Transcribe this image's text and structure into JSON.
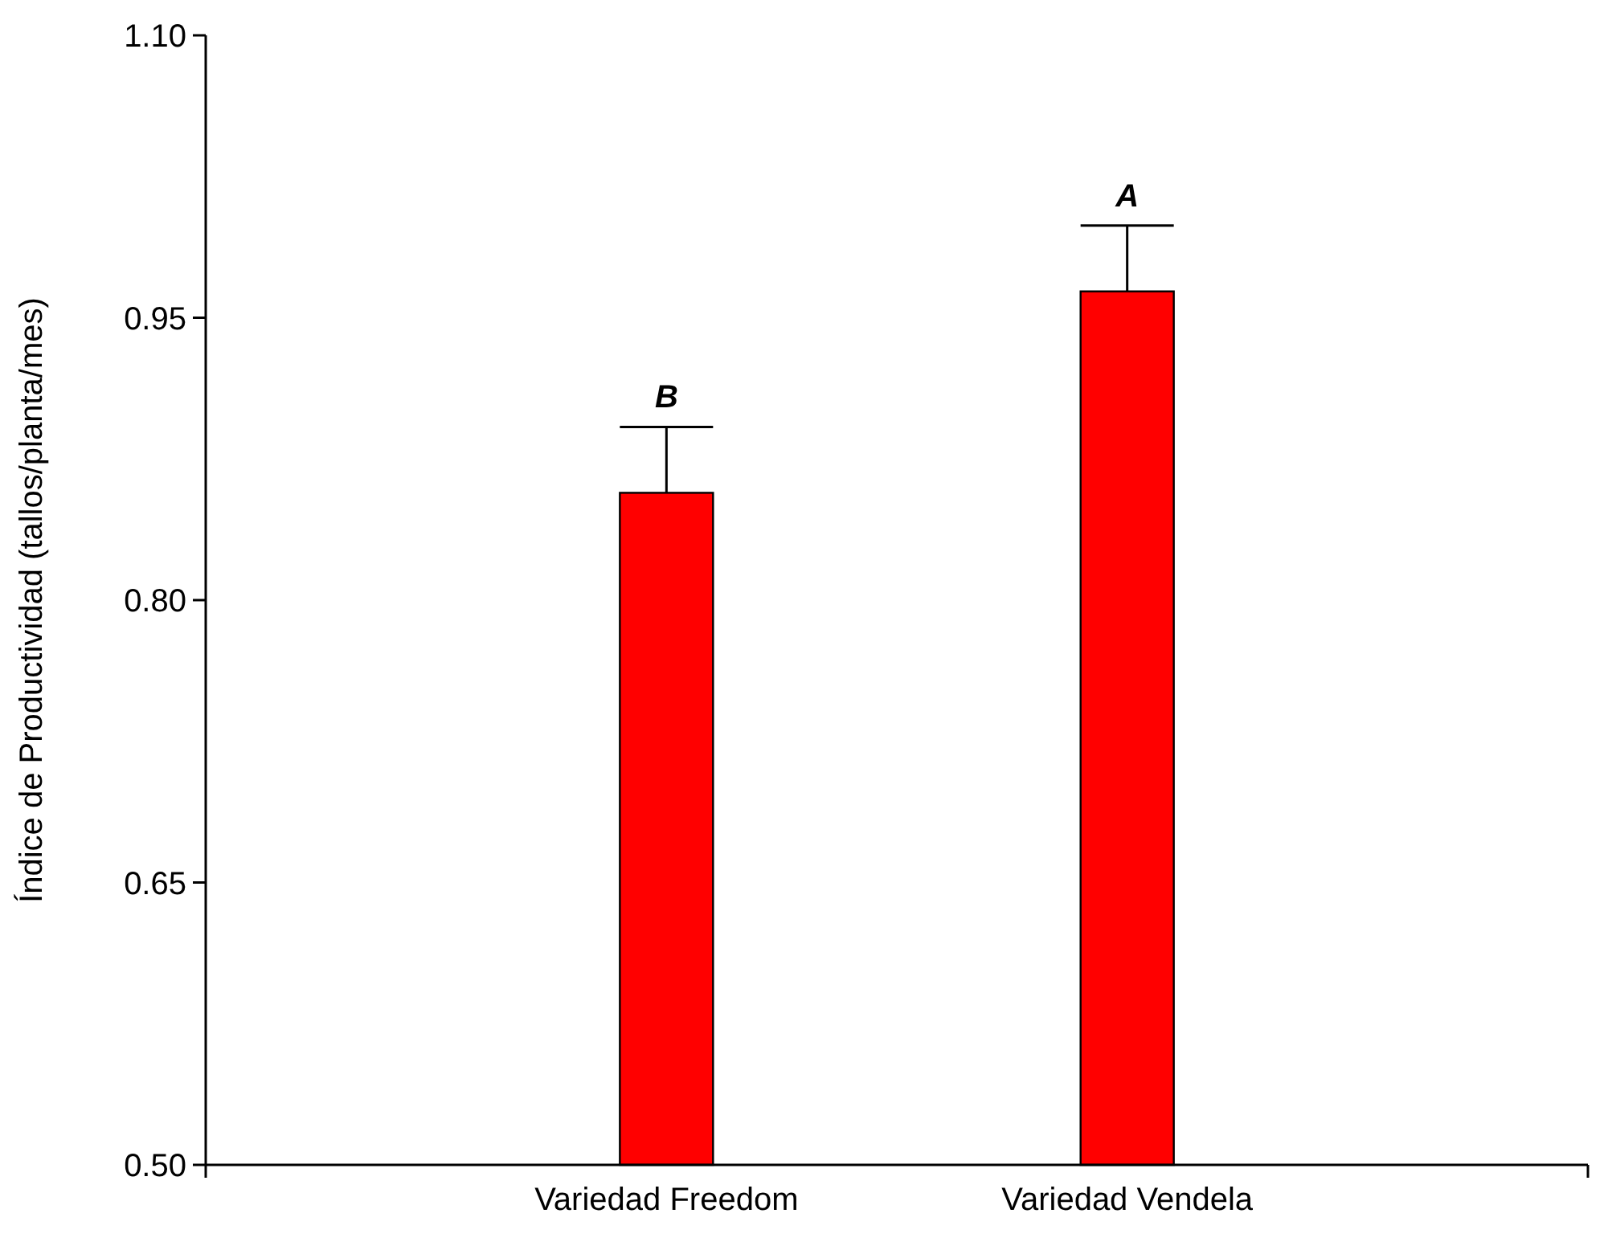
{
  "chart_data": {
    "type": "bar",
    "ylabel": "Índice de Productividad (tallos/planta/mes)",
    "categories": [
      "Variedad Freedom",
      "Variedad Vendela"
    ],
    "values": [
      0.857,
      0.964
    ],
    "color": "#ff0000",
    "errors": [
      [
        0.857,
        0.892
      ],
      [
        0.964,
        0.999
      ]
    ],
    "ylim": [
      0.5,
      1.1
    ],
    "yticks": [
      {
        "value": 0.5,
        "label": "0.50"
      },
      {
        "value": 0.65,
        "label": "0.65"
      },
      {
        "value": 0.8,
        "label": "0.80"
      },
      {
        "value": 0.95,
        "label": "0.95"
      },
      {
        "value": 1.1,
        "label": "1.10"
      }
    ],
    "annotations": [
      {
        "text": "B",
        "x": "Variedad Freedom",
        "y": 0.892
      },
      {
        "text": "A",
        "x": "Variedad Vendela",
        "y": 0.999
      }
    ],
    "grid": false
  }
}
